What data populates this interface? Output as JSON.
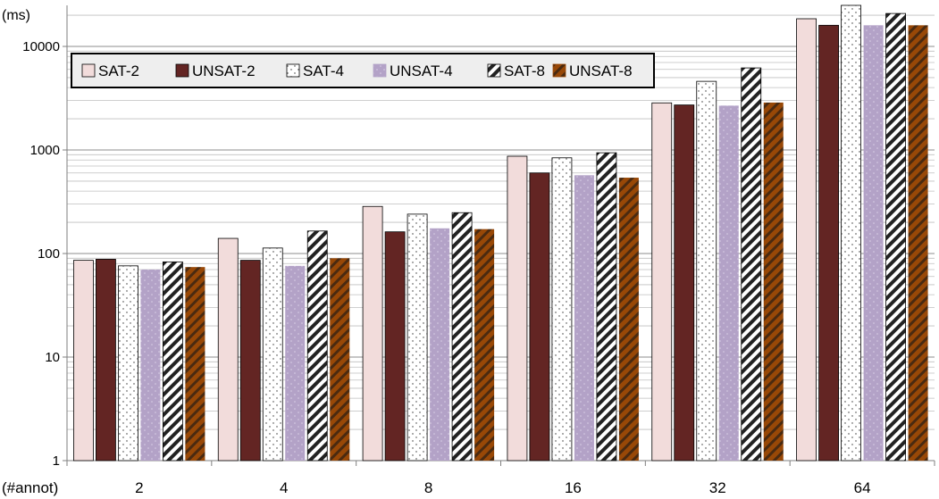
{
  "chart_data": {
    "type": "bar",
    "title": "",
    "ylabel": "(ms)",
    "xlabel": "(#annot)",
    "yscale": "log",
    "ylim": [
      1,
      25000
    ],
    "yticks": [
      "1",
      "10",
      "100",
      "1000",
      "10000"
    ],
    "grid": "horizontal minor and major log gridlines",
    "legend_position": "top-left, inside plot",
    "categories": [
      "2",
      "4",
      "8",
      "16",
      "32",
      "64"
    ],
    "series": [
      {
        "name": "SAT-2",
        "color": "#f2dcdb",
        "pattern": "solid-light",
        "values": [
          86,
          140,
          285,
          870,
          2850,
          18500
        ]
      },
      {
        "name": "UNSAT-2",
        "color": "#632523",
        "pattern": "solid-dark",
        "values": [
          88,
          86,
          162,
          600,
          2720,
          16000
        ]
      },
      {
        "name": "SAT-4",
        "color": "#ffffff",
        "pattern": "dotted",
        "values": [
          76,
          113,
          240,
          840,
          4600,
          25000
        ]
      },
      {
        "name": "UNSAT-4",
        "color": "#b3a2c7",
        "pattern": "dotted-light",
        "values": [
          70,
          76,
          175,
          570,
          2680,
          16000
        ]
      },
      {
        "name": "SAT-8",
        "color": "#ffffff",
        "pattern": "hatched",
        "values": [
          83,
          165,
          248,
          940,
          6200,
          20800
        ]
      },
      {
        "name": "UNSAT-8",
        "color": "#984807",
        "pattern": "hatched-orange",
        "values": [
          74,
          90,
          172,
          540,
          2870,
          16000
        ]
      }
    ]
  }
}
